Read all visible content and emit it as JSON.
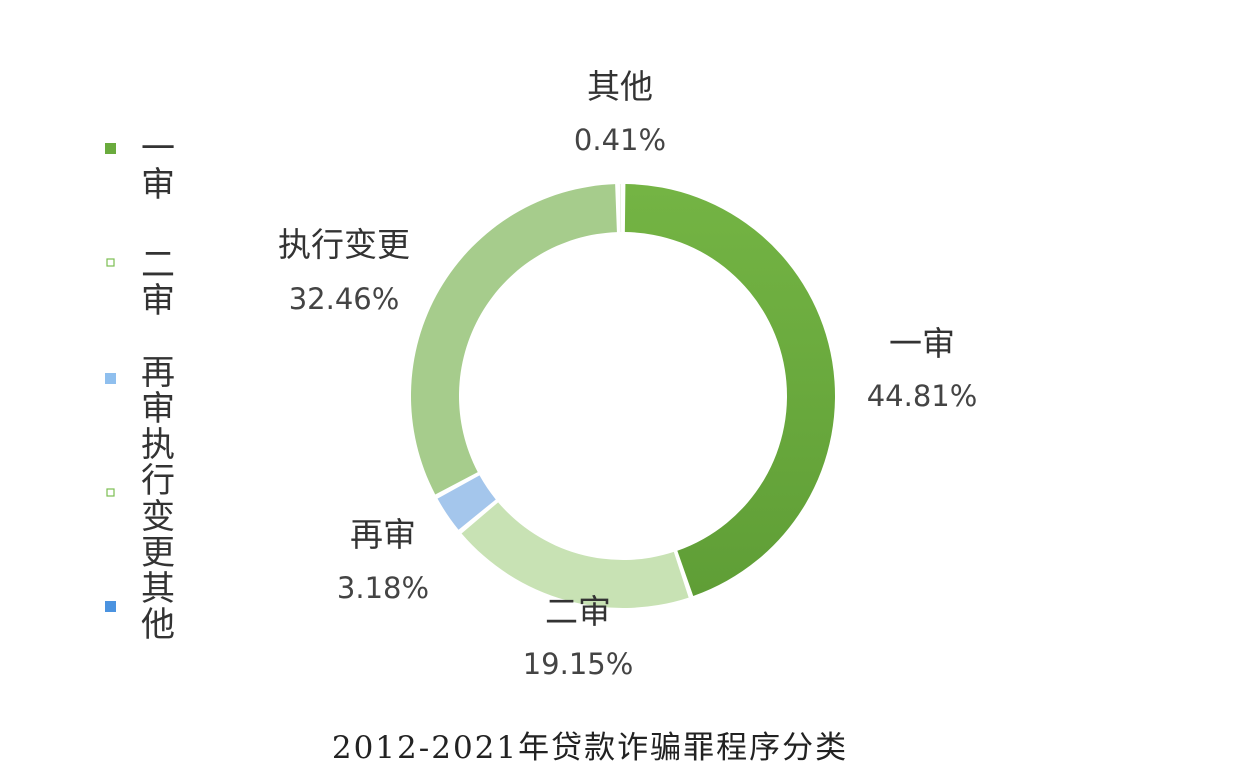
{
  "chart_data": {
    "type": "pie",
    "donut": true,
    "title": "2012-2021年贷款诈骗罪程序分类",
    "legend": {
      "position": "left",
      "entries": [
        {
          "label": "一审",
          "color": "#6aab3d",
          "marker": "square"
        },
        {
          "label": "二审",
          "color": "#7cbd52",
          "marker": "tiny"
        },
        {
          "label": "再审",
          "color": "#8fbfee",
          "marker": "square"
        },
        {
          "label": "执行变更",
          "color": "#7cbd52",
          "marker": "tiny"
        },
        {
          "label": "其他",
          "color": "#4b93e0",
          "marker": "square"
        }
      ]
    },
    "slices": [
      {
        "label": "一审",
        "value": 44.81,
        "value_text": "44.81%",
        "color": "#6aab3d"
      },
      {
        "label": "二审",
        "value": 19.15,
        "value_text": "19.15%",
        "color": "#c8e2b4"
      },
      {
        "label": "再审",
        "value": 3.18,
        "value_text": "3.18%",
        "color": "#a4c6ec"
      },
      {
        "label": "执行变更",
        "value": 32.46,
        "value_text": "32.46%",
        "color": "#a6cc8c"
      },
      {
        "label": "其他",
        "value": 0.41,
        "value_text": "0.41%",
        "color": "#dbe9cf"
      }
    ]
  }
}
